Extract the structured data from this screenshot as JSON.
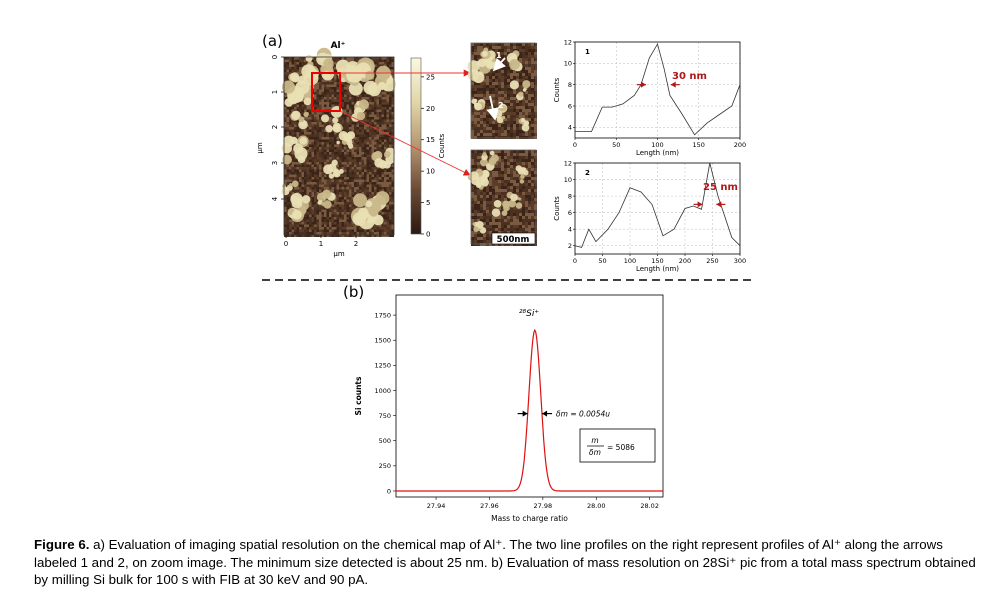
{
  "panel_a": {
    "label": "(a)",
    "map": {
      "title": "Al⁺",
      "x_ticks": [
        "0",
        "1",
        "2"
      ],
      "y_ticks": [
        "0",
        "1",
        "2",
        "3",
        "4"
      ],
      "xlabel": "µm",
      "ylabel": "µm",
      "colorbar_ticks": [
        "25",
        "20",
        "15",
        "10",
        "5",
        "0"
      ],
      "colorbar_label": "Counts"
    },
    "zoom": {
      "arrow_labels": [
        "1",
        "2"
      ],
      "scale_bar": "500nm"
    }
  },
  "panel_b": {
    "label": "(b)"
  },
  "chart_data": [
    {
      "type": "line",
      "series_label": "1",
      "xlabel": "Length (nm)",
      "ylabel": "Counts",
      "xlim": [
        0,
        200
      ],
      "ylim": [
        3,
        12
      ],
      "x_ticks": [
        "0",
        "50",
        "100",
        "150",
        "200"
      ],
      "y_ticks": [
        "4",
        "6",
        "8",
        "10",
        "12"
      ],
      "x": [
        0,
        20,
        33,
        45,
        58,
        72,
        80,
        90,
        100,
        108,
        115,
        130,
        145,
        160,
        175,
        190,
        200
      ],
      "y": [
        3.6,
        3.6,
        5.9,
        5.9,
        6.2,
        7.0,
        8.0,
        10.5,
        11.8,
        9.5,
        7.0,
        5.2,
        3.3,
        4.4,
        5.2,
        6.0,
        8.0
      ],
      "annotation": "30 nm",
      "annotation_x": [
        86,
        116
      ]
    },
    {
      "type": "line",
      "series_label": "2",
      "xlabel": "Length (nm)",
      "ylabel": "Counts",
      "xlim": [
        0,
        300
      ],
      "ylim": [
        1,
        12
      ],
      "x_ticks": [
        "0",
        "50",
        "100",
        "150",
        "200",
        "250",
        "300"
      ],
      "y_ticks": [
        "2",
        "4",
        "6",
        "8",
        "10",
        "12"
      ],
      "x": [
        0,
        12,
        25,
        38,
        60,
        80,
        100,
        120,
        140,
        160,
        180,
        200,
        215,
        230,
        245,
        260,
        285,
        300
      ],
      "y": [
        2.0,
        1.8,
        4.0,
        2.5,
        4.0,
        6.0,
        9.0,
        8.5,
        7.0,
        3.2,
        4.0,
        6.5,
        6.8,
        6.4,
        12.0,
        8.0,
        3.0,
        2.0
      ],
      "annotation": "25 nm",
      "annotation_x": [
        232,
        257
      ]
    },
    {
      "type": "line",
      "xlabel": "Mass to charge ratio",
      "ylabel": "Si counts",
      "xlim": [
        27.925,
        28.025
      ],
      "ylim": [
        -60,
        1950
      ],
      "x_ticks": [
        "27.94",
        "27.96",
        "27.98",
        "28.00",
        "28.02"
      ],
      "y_ticks": [
        "0",
        "250",
        "500",
        "750",
        "1000",
        "1250",
        "1500",
        "1750"
      ],
      "peak_center": 27.977,
      "peak_height": 1600,
      "peak_sigma": 0.0022,
      "peak_label": "²⁸Si⁺",
      "annotation": "δm = 0.0054u",
      "annotation_x": [
        27.9743,
        27.9797
      ],
      "annotation_y": 770,
      "box_text": {
        "numerator": "m",
        "denominator": "δm",
        "value": "= 5086"
      }
    }
  ],
  "caption": {
    "figure_label": "Figure 6.",
    "text": " a) Evaluation of imaging spatial resolution on the chemical map of Al⁺. The two line profiles on the right represent profiles of Al⁺ along the arrows labeled 1 and 2, on zoom image. The minimum size detected is about 25 nm. b) Evaluation of mass resolution on 28Si⁺ pic from a total mass spectrum obtained by milling Si bulk for 100 s with FIB at 30 keV and 90 pA."
  }
}
